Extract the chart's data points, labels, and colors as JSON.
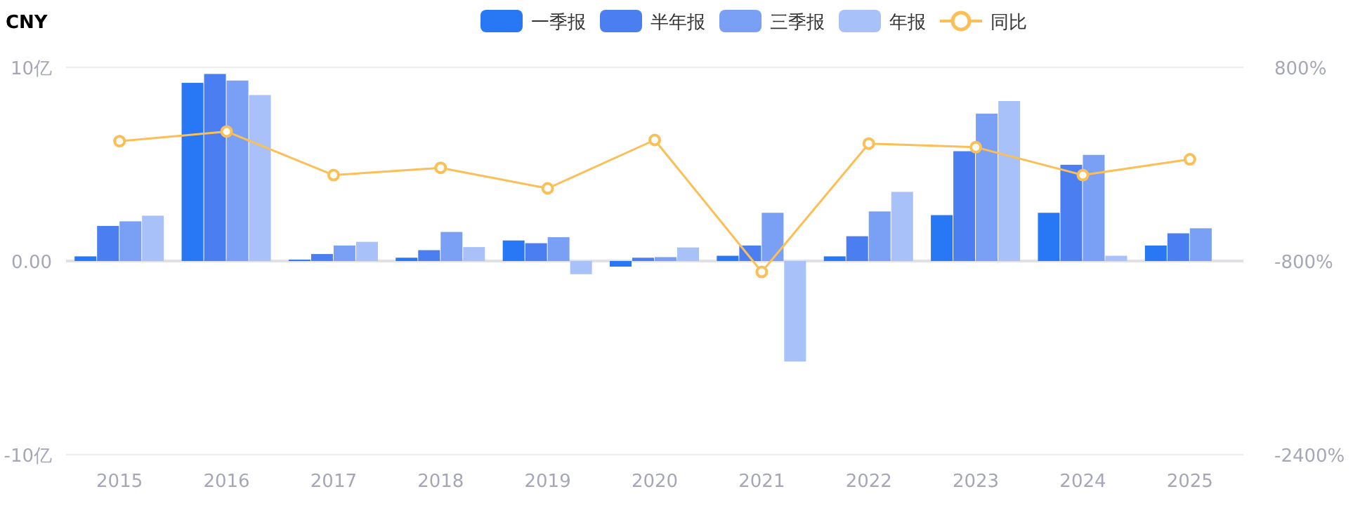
{
  "chart_data": {
    "type": "bar",
    "categories": [
      "2015",
      "2016",
      "2017",
      "2018",
      "2019",
      "2020",
      "2021",
      "2022",
      "2023",
      "2024",
      "2025"
    ],
    "series": [
      {
        "name": "一季报",
        "color": "#2878f5",
        "values": [
          0.24,
          9.2,
          0.07,
          0.17,
          1.06,
          -0.29,
          0.27,
          0.24,
          2.37,
          2.49,
          0.8
        ]
      },
      {
        "name": "半年报",
        "color": "#4b7ef0",
        "values": [
          1.81,
          9.66,
          0.36,
          0.56,
          0.92,
          0.17,
          0.8,
          1.28,
          5.67,
          4.97,
          1.43
        ]
      },
      {
        "name": "三季报",
        "color": "#7aa0f5",
        "values": [
          2.05,
          9.32,
          0.8,
          1.5,
          1.23,
          0.2,
          2.49,
          2.56,
          7.61,
          5.48,
          1.69
        ]
      },
      {
        "name": "年报",
        "color": "#a8c1f8",
        "values": [
          2.34,
          8.57,
          0.99,
          0.72,
          -0.68,
          0.7,
          -5.19,
          3.57,
          8.26,
          0.27,
          null
        ]
      },
      {
        "name": "同比",
        "type": "line",
        "axis": "y2",
        "marker": "circle",
        "color": "#fbbf56",
        "values": [
          190,
          270,
          -90,
          -30,
          -200,
          200,
          -890,
          170,
          140,
          -90,
          40
        ]
      }
    ],
    "ylim": [
      -10,
      10
    ],
    "yticks": [
      {
        "value": 10,
        "label": "10亿"
      },
      {
        "value": 0,
        "label": "0.00"
      },
      {
        "value": -10,
        "label": "-10亿"
      }
    ],
    "y2lim": [
      -2400,
      800
    ],
    "y2ticks": [
      {
        "value": 800,
        "label": "800%"
      },
      {
        "value": -800,
        "label": "-800%"
      },
      {
        "value": -2400,
        "label": "-2400%"
      }
    ],
    "grid": "y",
    "legend": "top",
    "annotations": [
      "CNY"
    ]
  }
}
